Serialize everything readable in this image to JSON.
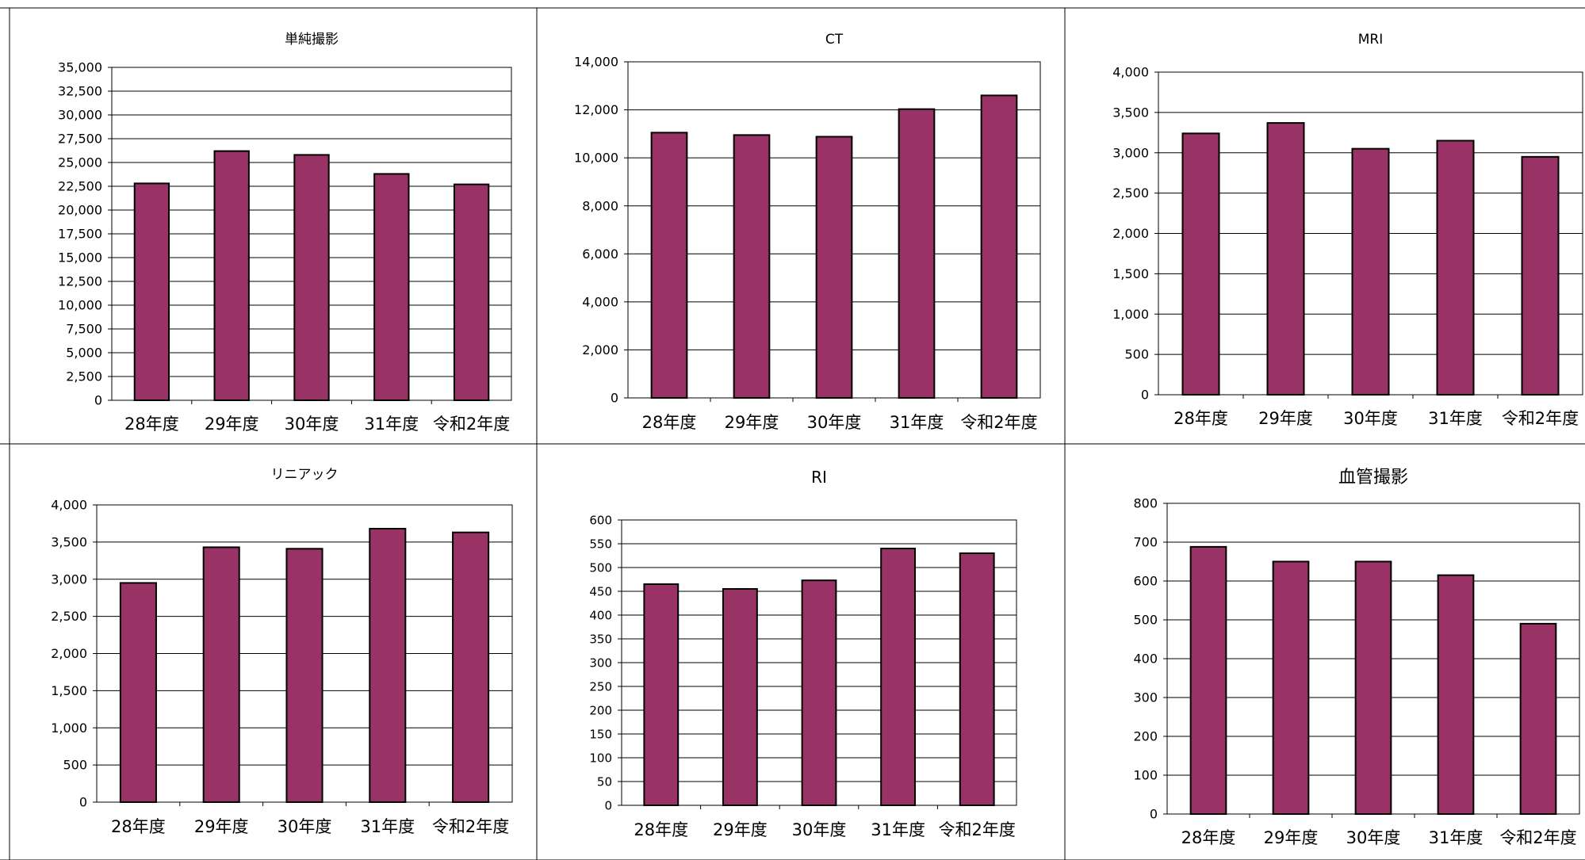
{
  "page_heading": "",
  "bar_color": "#993366",
  "chart_data": [
    {
      "type": "bar",
      "title": "単純撮影",
      "categories": [
        "28年度",
        "29年度",
        "30年度",
        "31年度",
        "令和2年度"
      ],
      "values": [
        22800,
        26200,
        25800,
        23800,
        22700
      ],
      "ylim": [
        0,
        35000
      ],
      "yticks": [
        "0",
        "2,500",
        "5,000",
        "7,500",
        "10,000",
        "12,500",
        "15,000",
        "17,500",
        "20,000",
        "22,500",
        "25,000",
        "27,500",
        "30,000",
        "32,500",
        "35,000"
      ],
      "grid": true
    },
    {
      "type": "bar",
      "title": "CT",
      "categories": [
        "28年度",
        "29年度",
        "30年度",
        "31年度",
        "令和2年度"
      ],
      "values": [
        11050,
        10950,
        10880,
        12030,
        12600
      ],
      "ylim": [
        0,
        14000
      ],
      "yticks": [
        "0",
        "2,000",
        "4,000",
        "6,000",
        "8,000",
        "10,000",
        "12,000",
        "14,000"
      ],
      "grid": true
    },
    {
      "type": "bar",
      "title": "MRI",
      "categories": [
        "28年度",
        "29年度",
        "30年度",
        "31年度",
        "令和2年度"
      ],
      "values": [
        3240,
        3370,
        3050,
        3150,
        2950
      ],
      "ylim": [
        0,
        4000
      ],
      "yticks": [
        "0",
        "500",
        "1,000",
        "1,500",
        "2,000",
        "2,500",
        "3,000",
        "3,500",
        "4,000"
      ],
      "grid": true
    },
    {
      "type": "bar",
      "title": "リニアック",
      "categories": [
        "28年度",
        "29年度",
        "30年度",
        "31年度",
        "令和2年度"
      ],
      "values": [
        2950,
        3430,
        3410,
        3680,
        3630
      ],
      "ylim": [
        0,
        4000
      ],
      "yticks": [
        "0",
        "500",
        "1,000",
        "1,500",
        "2,000",
        "2,500",
        "3,000",
        "3,500",
        "4,000"
      ],
      "grid": true
    },
    {
      "type": "bar",
      "title": "RI",
      "categories": [
        "28年度",
        "29年度",
        "30年度",
        "31年度",
        "令和2年度"
      ],
      "values": [
        465,
        455,
        473,
        540,
        530
      ],
      "ylim": [
        0,
        600
      ],
      "yticks": [
        "0",
        "50",
        "100",
        "150",
        "200",
        "250",
        "300",
        "350",
        "400",
        "450",
        "500",
        "550",
        "600"
      ],
      "grid": true
    },
    {
      "type": "bar",
      "title": "血管撮影",
      "categories": [
        "28年度",
        "29年度",
        "30年度",
        "31年度",
        "令和2年度"
      ],
      "values": [
        688,
        650,
        650,
        615,
        490
      ],
      "ylim": [
        0,
        800
      ],
      "yticks": [
        "0",
        "100",
        "200",
        "300",
        "400",
        "500",
        "600",
        "700",
        "800"
      ],
      "grid": true
    }
  ]
}
